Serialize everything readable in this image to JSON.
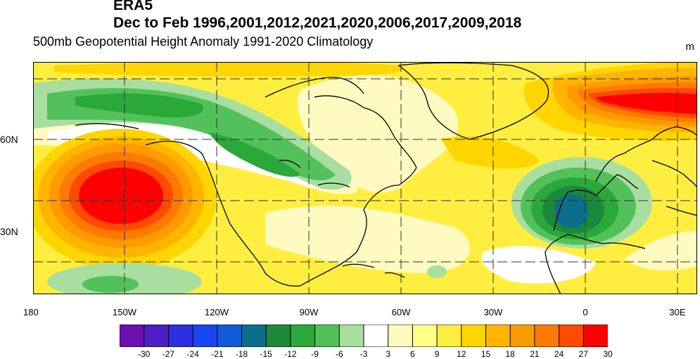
{
  "header": {
    "line1": "ERA5",
    "line2": "Dec to Feb 1996,2001,2012,2021,2020,2006,2017,2009,2018",
    "line3": "500mb Geopotential Height Anomaly  1991-2020 Climatology",
    "unit": "m"
  },
  "map": {
    "lat_labels": [
      "60N",
      "30N"
    ],
    "lon_labels": [
      "180",
      "150W",
      "120W",
      "90W",
      "60W",
      "30W",
      "0",
      "30E"
    ]
  },
  "colorbar": {
    "labels": [
      "-30",
      "-27",
      "-24",
      "-21",
      "-18",
      "-15",
      "-12",
      "-9",
      "-6",
      "-3",
      "3",
      "6",
      "9",
      "12",
      "15",
      "18",
      "21",
      "24",
      "27",
      "30"
    ],
    "colors": [
      "#6a0fb0",
      "#4b1fc4",
      "#2d2ee0",
      "#1b45f0",
      "#0f5ad6",
      "#0a6e8c",
      "#1a8a3a",
      "#2aa83a",
      "#52c15a",
      "#a8dea0",
      "#ffffff",
      "#fffac0",
      "#ffff88",
      "#ffee40",
      "#ffd500",
      "#ffb400",
      "#ff9a00",
      "#ff7a00",
      "#ff4a00",
      "#ff0000"
    ]
  }
}
